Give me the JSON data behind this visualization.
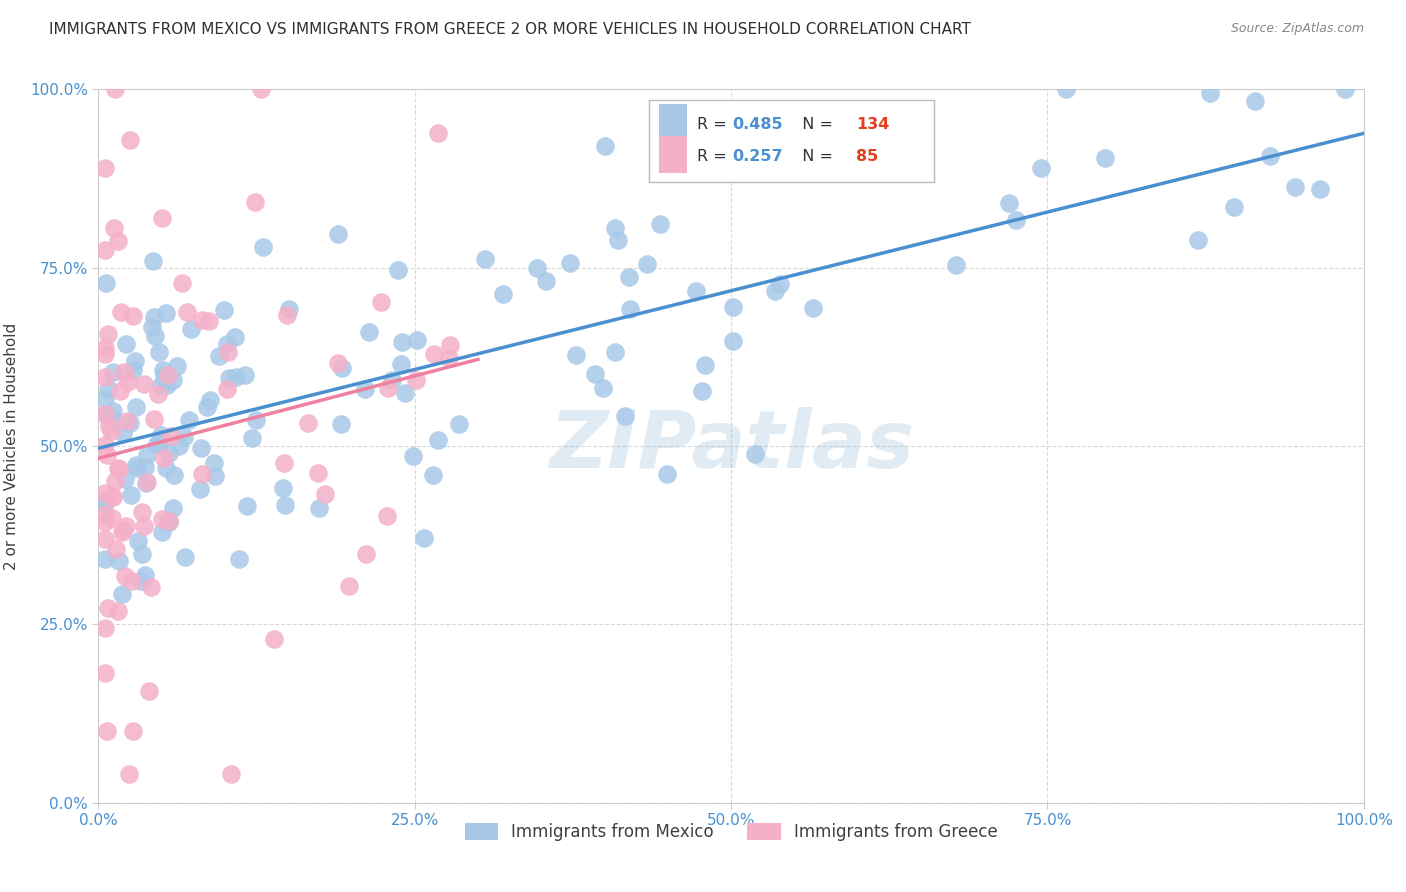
{
  "title": "IMMIGRANTS FROM MEXICO VS IMMIGRANTS FROM GREECE 2 OR MORE VEHICLES IN HOUSEHOLD CORRELATION CHART",
  "source": "Source: ZipAtlas.com",
  "ylabel": "2 or more Vehicles in Household",
  "xlim": [
    0.0,
    1.0
  ],
  "ylim": [
    0.0,
    1.0
  ],
  "x_ticks": [
    0.0,
    0.25,
    0.5,
    0.75,
    1.0
  ],
  "x_tick_labels": [
    "0.0%",
    "25.0%",
    "50.0%",
    "75.0%",
    "100.0%"
  ],
  "y_ticks": [
    0.0,
    0.25,
    0.5,
    0.75,
    1.0
  ],
  "y_tick_labels": [
    "0.0%",
    "25.0%",
    "50.0%",
    "75.0%",
    "100.0%"
  ],
  "mexico_color": "#a8c8e8",
  "greece_color": "#f4b0c8",
  "mexico_R": 0.485,
  "mexico_N": 134,
  "greece_R": 0.257,
  "greece_N": 85,
  "mexico_line_color": "#4a90d0",
  "greece_line_color": "#f080a0",
  "legend_R_color": "#4a90d0",
  "legend_N_color": "#e04020",
  "watermark": "ZIPatlas",
  "background_color": "#ffffff",
  "grid_color": "#d0d0d0",
  "title_color": "#303030",
  "title_fontsize": 11.0,
  "axis_tick_color": "#4a90d0",
  "legend_entries": [
    "Immigrants from Mexico",
    "Immigrants from Greece"
  ]
}
